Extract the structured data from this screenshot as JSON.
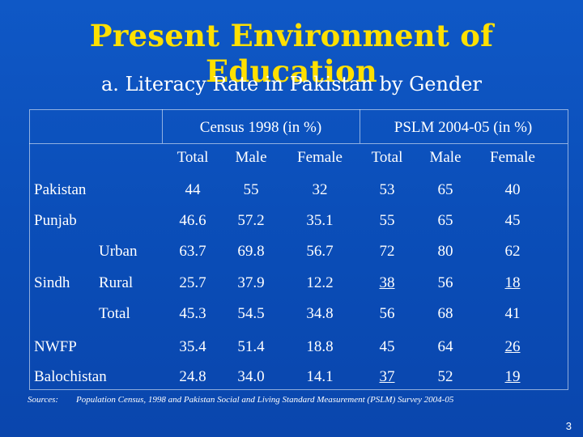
{
  "slide": {
    "title": "Present Environment of Education",
    "subtitle": "a. Literacy Rate in Pakistan by Gender",
    "page_number": "3"
  },
  "table": {
    "group_headers": [
      "Census 1998 (in %)",
      "PSLM 2004-05 (in %)"
    ],
    "sub_headers": [
      "Total",
      "Male",
      "Female",
      "Total",
      "Male",
      "Female"
    ],
    "rows": [
      {
        "region": "Pakistan",
        "sub": "",
        "values": [
          "44",
          "55",
          "32",
          "53",
          "65",
          "40"
        ],
        "underline": []
      },
      {
        "region": "Punjab",
        "sub": "",
        "values": [
          "46.6",
          "57.2",
          "35.1",
          "55",
          "65",
          "45"
        ],
        "underline": []
      },
      {
        "region": "",
        "sub": "Urban",
        "values": [
          "63.7",
          "69.8",
          "56.7",
          "72",
          "80",
          "62"
        ],
        "underline": []
      },
      {
        "region": "Sindh",
        "sub": "Rural",
        "values": [
          "25.7",
          "37.9",
          "12.2",
          "38",
          "56",
          "18"
        ],
        "underline": [
          3,
          5
        ]
      },
      {
        "region": "",
        "sub": "Total",
        "values": [
          "45.3",
          "54.5",
          "34.8",
          "56",
          "68",
          "41"
        ],
        "underline": []
      },
      {
        "region": "NWFP",
        "sub": "",
        "values": [
          "35.4",
          "51.4",
          "18.8",
          "45",
          "64",
          "26"
        ],
        "underline": [
          5
        ]
      },
      {
        "region": "Balochistan",
        "sub": "",
        "values": [
          "24.8",
          "34.0",
          "14.1",
          "37",
          "52",
          "19"
        ],
        "underline": [
          3,
          5
        ]
      }
    ]
  },
  "sources": {
    "label": "Sources:",
    "text": "Population Census, 1998 and Pakistan Social and Living Standard Measurement (PSLM) Survey 2004-05"
  }
}
